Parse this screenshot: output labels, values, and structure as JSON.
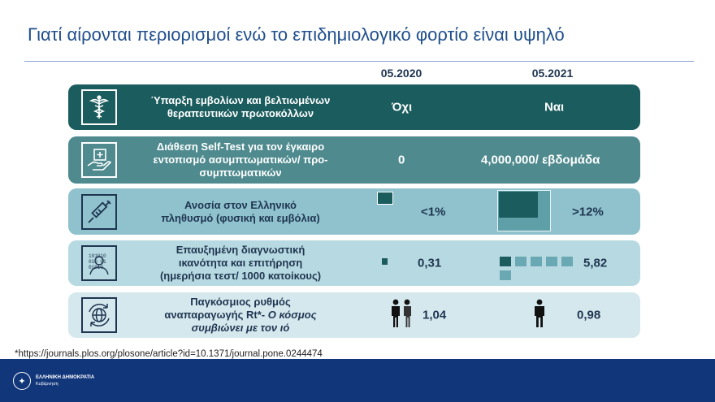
{
  "title": "Γιατί αίρονται περιορισμοί ενώ το επιδημιολογικό φορτίο είναι υψηλό",
  "columns": {
    "col_2020": "05.2020",
    "col_2021": "05.2021"
  },
  "rows": [
    {
      "icon": "caduceus-icon",
      "label_lines": [
        "Ύπαρξη εμβολίων και βελτιωμένων",
        "θεραπευτικών πρωτοκόλλων"
      ],
      "value_2020": "Όχι",
      "value_2021": "Ναι"
    },
    {
      "icon": "hand-plus-icon",
      "label_lines": [
        "Διάθεση Self-Test για τον έγκαιρο",
        "εντοπισμό ασυμπτωματικών/ προ-",
        "συμπτωματικών"
      ],
      "value_2020": "0",
      "value_2021": "4,000,000/ εβδομάδα"
    },
    {
      "icon": "syringe-icon",
      "label_lines": [
        "Ανοσία στον Ελληνικό",
        "πληθυσμό (φυσική και εμβόλια)"
      ],
      "value_2020": "<1%",
      "value_2021": ">12%"
    },
    {
      "icon": "binary-head-icon",
      "label_lines": [
        "Επαυξημένη διαγνωστική",
        "ικανότητα και επιτήρηση",
        "(ημερήσια τεστ/ 1000 κατοίκους)"
      ],
      "value_2020": "0,31",
      "value_2021": "5,82"
    },
    {
      "icon": "globe-cycle-icon",
      "label_lines": [
        "Παγκόσμιος ρυθμός",
        "αναπαραγωγής Rt*- ",
        "συμβιώνει με τον ιό"
      ],
      "label_italic": "Ο κόσμος",
      "value_2020": "1,04",
      "value_2021": "0,98"
    }
  ],
  "footnote": "*https://journals.plos.org/plosone/article?id=10.1371/journal.pone.0244474",
  "footer": {
    "logo_line1": "ΕΛΛΗΝΙΚΗ ΔΗΜΟΚΡΑΤΙΑ",
    "logo_line2": "Κυβέρνηση"
  },
  "colors": {
    "title": "#1f4e8c",
    "row1": "#1b5c5e",
    "row2": "#4e8a8e",
    "row3": "#8fc2cd",
    "row4": "#b7d9e1",
    "row5": "#d5e8ee",
    "footer": "#12367a"
  }
}
